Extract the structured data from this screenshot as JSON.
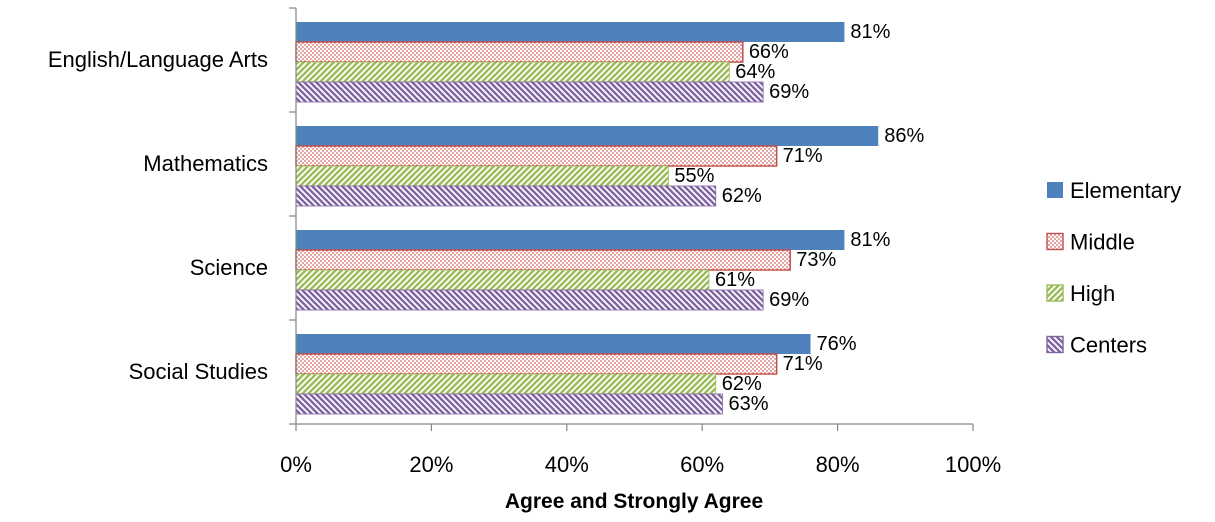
{
  "chart_data": {
    "type": "bar",
    "orientation": "horizontal",
    "categories": [
      "English/Language Arts",
      "Mathematics",
      "Science",
      "Social Studies"
    ],
    "series": [
      {
        "name": "Elementary",
        "values": [
          81,
          86,
          81,
          76
        ],
        "color": "#4f81bd",
        "pattern": "solid"
      },
      {
        "name": "Middle",
        "values": [
          66,
          71,
          73,
          71
        ],
        "color": "#c0504d",
        "pattern": "dots"
      },
      {
        "name": "High",
        "values": [
          64,
          55,
          61,
          62
        ],
        "color": "#9bbb59",
        "pattern": "diagonal-up"
      },
      {
        "name": "Centers",
        "values": [
          69,
          62,
          69,
          63
        ],
        "color": "#8064a2",
        "pattern": "diagonal-down"
      }
    ],
    "data_labels": [
      [
        "81%",
        "66%",
        "64%",
        "69%"
      ],
      [
        "86%",
        "71%",
        "55%",
        "62%"
      ],
      [
        "81%",
        "73%",
        "61%",
        "69%"
      ],
      [
        "76%",
        "71%",
        "62%",
        "63%"
      ]
    ],
    "xlim": [
      0,
      100
    ],
    "x_ticks": [
      0,
      20,
      40,
      60,
      80,
      100
    ],
    "x_tick_labels": [
      "0%",
      "20%",
      "40%",
      "60%",
      "80%",
      "100%"
    ],
    "xlabel": "Agree and Strongly Agree",
    "ylabel": "",
    "title": "",
    "grid": false,
    "legend": {
      "position": "right",
      "entries": [
        "Elementary",
        "Middle",
        "High",
        "Centers"
      ]
    }
  }
}
